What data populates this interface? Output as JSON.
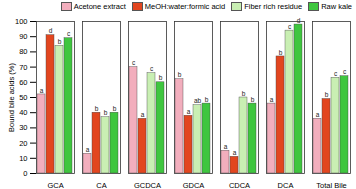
{
  "chart_data": {
    "type": "bar",
    "y_label": "Bound bile acids (%)",
    "categories": [
      "GCA",
      "CA",
      "GCDCA",
      "GDCA",
      "CDCA",
      "DCA",
      "Total Bile"
    ],
    "series": [
      {
        "name": "Acetone extract",
        "color": "#f2aebd",
        "values": [
          52,
          13,
          70,
          62,
          15,
          46,
          36
        ],
        "letters": [
          "a",
          "a",
          "c",
          "b",
          "a",
          "a",
          "a"
        ]
      },
      {
        "name": "MeOH:water:formic acid",
        "color": "#e2461f",
        "values": [
          91,
          40,
          36,
          38,
          11,
          77,
          49
        ],
        "letters": [
          "d",
          "b",
          "a",
          "a",
          "a",
          "b",
          "b"
        ]
      },
      {
        "name": "Fiber rich residue",
        "color": "#c9efb3",
        "values": [
          84,
          37,
          66,
          45,
          50,
          94,
          63
        ],
        "letters": [
          "b",
          "b",
          "c",
          "ab",
          "b",
          "c",
          "c"
        ]
      },
      {
        "name": "Raw kale",
        "color": "#3fc63f",
        "values": [
          89,
          40,
          60,
          46,
          46,
          98,
          64
        ],
        "letters": [
          "c",
          "b",
          "b",
          "b",
          "b",
          "d",
          "c"
        ]
      }
    ],
    "ylim": [
      0,
      100
    ],
    "yticks": [
      0,
      10,
      20,
      30,
      40,
      50,
      60,
      70,
      80,
      90,
      100
    ],
    "legend": "top",
    "grid": false
  }
}
